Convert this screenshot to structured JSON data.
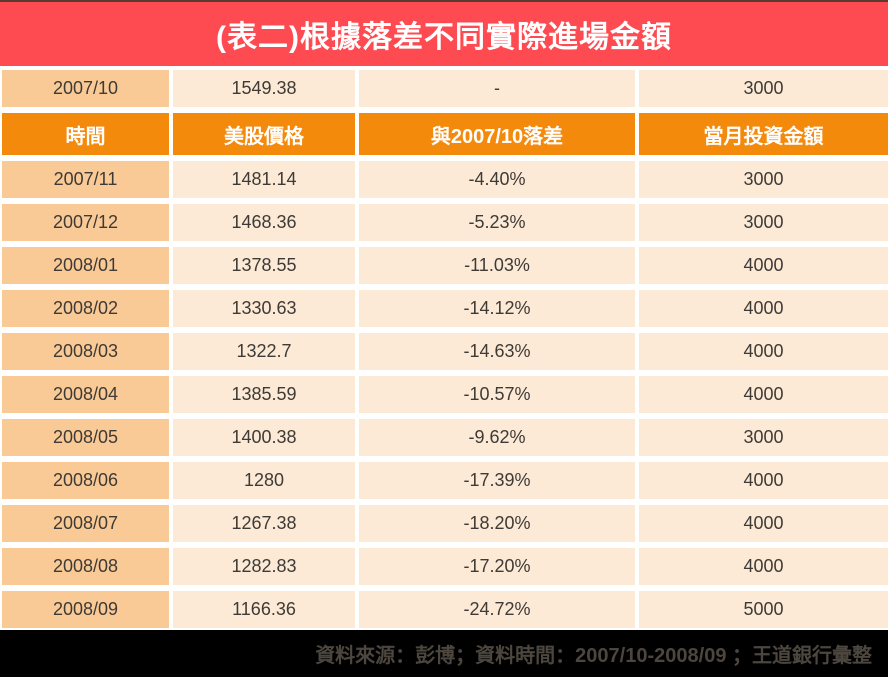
{
  "title": "(表二)根據落差不同實際進場金額",
  "table": {
    "headers": [
      "時間",
      "美股價格",
      "與2007/10落差",
      "當月投資金額"
    ],
    "baseline_row": {
      "date": "2007/10",
      "price": "1549.38",
      "gap": "-",
      "amount": "3000"
    },
    "rows": [
      {
        "date": "2007/11",
        "price": "1481.14",
        "gap": "-4.40%",
        "amount": "3000"
      },
      {
        "date": "2007/12",
        "price": "1468.36",
        "gap": "-5.23%",
        "amount": "3000"
      },
      {
        "date": "2008/01",
        "price": "1378.55",
        "gap": "-11.03%",
        "amount": "4000"
      },
      {
        "date": "2008/02",
        "price": "1330.63",
        "gap": "-14.12%",
        "amount": "4000"
      },
      {
        "date": "2008/03",
        "price": "1322.7",
        "gap": "-14.63%",
        "amount": "4000"
      },
      {
        "date": "2008/04",
        "price": "1385.59",
        "gap": "-10.57%",
        "amount": "4000"
      },
      {
        "date": "2008/05",
        "price": "1400.38",
        "gap": "-9.62%",
        "amount": "3000"
      },
      {
        "date": "2008/06",
        "price": "1280",
        "gap": "-17.39%",
        "amount": "4000"
      },
      {
        "date": "2008/07",
        "price": "1267.38",
        "gap": "-18.20%",
        "amount": "4000"
      },
      {
        "date": "2008/08",
        "price": "1282.83",
        "gap": "-17.20%",
        "amount": "4000"
      },
      {
        "date": "2008/09",
        "price": "1166.36",
        "gap": "-24.72%",
        "amount": "5000"
      }
    ]
  },
  "footer": {
    "text": "資料來源：彭博；資料時間：2007/10-2008/09 ；王道銀行彙整"
  },
  "colors": {
    "title-bg": "#FE4B52",
    "header-bg": "#F48A0C",
    "date-cell-bg": "#FACA96",
    "cell-bg": "#FCEAD7",
    "cell-text": "#3E3A35",
    "footer-bg": "#000000",
    "footer-text": "#4C463E"
  }
}
